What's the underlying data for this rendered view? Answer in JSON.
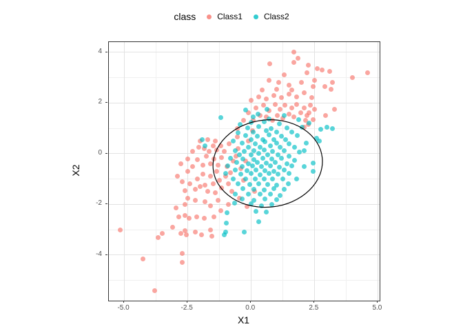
{
  "legend": {
    "title": "class",
    "items": [
      {
        "label": "Class1",
        "color": "#F8766D"
      },
      {
        "label": "Class2",
        "color": "#00BFC4"
      }
    ]
  },
  "chart_data": {
    "type": "scatter",
    "title": "",
    "xlabel": "X1",
    "ylabel": "X2",
    "xlim": [
      -5.6,
      5.07
    ],
    "ylim": [
      -5.8,
      4.4
    ],
    "grid": true,
    "legend_position": "top",
    "x_ticks": {
      "values": [
        -5,
        -2.5,
        0,
        2.5,
        5
      ],
      "labels": [
        "-5.0",
        "-2.5",
        "0.0",
        "2.5",
        "5.0"
      ]
    },
    "y_ticks": {
      "values": [
        -4,
        -2,
        0,
        2,
        4
      ],
      "labels": [
        "-4",
        "-2",
        "0",
        "2",
        "4"
      ]
    },
    "x_minor": [
      -3.75,
      -1.25,
      1.25,
      3.75
    ],
    "y_minor": [
      -5,
      -3,
      -1,
      1,
      3
    ],
    "point_alpha": 0.65,
    "ellipse": {
      "cx": 0.66,
      "cy": -0.39,
      "rx": 2.16,
      "ry": 1.72,
      "rotation_deg": 6,
      "stroke": "#000000",
      "stroke_width": 1.2
    },
    "series": [
      {
        "name": "Class1",
        "color": "#F8766D",
        "points": [
          [
            -5.15,
            -3.0
          ],
          [
            -4.25,
            -4.15
          ],
          [
            -3.8,
            -5.4
          ],
          [
            -3.65,
            -3.3
          ],
          [
            -3.5,
            -3.15
          ],
          [
            -3.1,
            -2.9
          ],
          [
            -2.7,
            -3.95
          ],
          [
            -2.7,
            -4.3
          ],
          [
            -2.75,
            -3.15
          ],
          [
            -2.6,
            -3.05
          ],
          [
            -2.55,
            -3.2
          ],
          [
            -2.2,
            -3.1
          ],
          [
            -1.95,
            -3.2
          ],
          [
            -1.55,
            -3.25
          ],
          [
            -2.85,
            -2.5
          ],
          [
            -2.6,
            -2.45
          ],
          [
            -2.45,
            -2.55
          ],
          [
            -2.15,
            -2.5
          ],
          [
            -1.85,
            -2.55
          ],
          [
            -1.6,
            -3.0
          ],
          [
            -2.95,
            -2.15
          ],
          [
            -2.6,
            -2.0
          ],
          [
            -1.45,
            -2.5
          ],
          [
            -1.3,
            -1.85
          ],
          [
            -1.6,
            -2.05
          ],
          [
            -1.2,
            -2.25
          ],
          [
            -2.2,
            -1.85
          ],
          [
            -2.5,
            -1.75
          ],
          [
            -1.8,
            -1.9
          ],
          [
            -0.9,
            -2.0
          ],
          [
            -2.9,
            -0.9
          ],
          [
            -2.7,
            -1.1
          ],
          [
            -2.5,
            -0.7
          ],
          [
            -2.4,
            -1.2
          ],
          [
            -2.6,
            -1.45
          ],
          [
            -2.2,
            -1.4
          ],
          [
            -2.1,
            -1.0
          ],
          [
            -2.0,
            -1.3
          ],
          [
            -1.9,
            -0.8
          ],
          [
            -1.8,
            -1.25
          ],
          [
            -1.7,
            -1.5
          ],
          [
            -1.6,
            -0.9
          ],
          [
            -1.5,
            -1.2
          ],
          [
            -1.4,
            -1.55
          ],
          [
            -1.35,
            -0.7
          ],
          [
            -1.25,
            -1.05
          ],
          [
            -1.15,
            -1.35
          ],
          [
            -1.0,
            -0.9
          ],
          [
            -0.9,
            -1.2
          ],
          [
            -0.75,
            -1.5
          ],
          [
            -2.75,
            -0.4
          ],
          [
            -2.5,
            -0.2
          ],
          [
            -2.3,
            -0.5
          ],
          [
            -2.1,
            -0.25
          ],
          [
            -1.9,
            -0.45
          ],
          [
            -1.75,
            -0.1
          ],
          [
            -1.6,
            -0.4
          ],
          [
            -1.45,
            -0.2
          ],
          [
            -1.3,
            -0.45
          ],
          [
            -1.15,
            -0.15
          ],
          [
            -2.3,
            0.1
          ],
          [
            -2.05,
            0.25
          ],
          [
            -1.85,
            0.2
          ],
          [
            -1.65,
            0.1
          ],
          [
            -1.5,
            0.3
          ],
          [
            -1.35,
            0.15
          ],
          [
            -2.0,
            0.5
          ],
          [
            -1.7,
            0.55
          ],
          [
            -1.4,
            0.5
          ],
          [
            -1.2,
            0.3
          ],
          [
            -1.05,
            0.1
          ],
          [
            -0.95,
            -0.5
          ],
          [
            -0.8,
            -0.75
          ],
          [
            -0.7,
            -0.3
          ],
          [
            -0.85,
            0.4
          ],
          [
            -0.45,
            -1.75
          ],
          [
            -0.6,
            -0.1
          ],
          [
            -0.5,
            0.2
          ],
          [
            -0.4,
            -0.6
          ],
          [
            -0.3,
            -1.05
          ],
          [
            -0.2,
            -0.3
          ],
          [
            -0.1,
            0.5
          ],
          [
            -0.55,
            0.65
          ],
          [
            0.05,
            0.9
          ],
          [
            -0.55,
            1.0
          ],
          [
            -0.3,
            1.3
          ],
          [
            -0.1,
            1.6
          ],
          [
            0.1,
            1.3
          ],
          [
            0.2,
            1.8
          ],
          [
            0.35,
            1.5
          ],
          [
            0.5,
            1.9
          ],
          [
            0.6,
            1.45
          ],
          [
            0.7,
            1.7
          ],
          [
            0.85,
            1.3
          ],
          [
            0.95,
            1.95
          ],
          [
            1.05,
            1.5
          ],
          [
            1.15,
            1.75
          ],
          [
            1.25,
            1.4
          ],
          [
            1.35,
            1.9
          ],
          [
            1.5,
            1.55
          ],
          [
            1.6,
            1.8
          ],
          [
            1.7,
            1.45
          ],
          [
            1.8,
            1.95
          ],
          [
            1.95,
            1.6
          ],
          [
            2.1,
            1.8
          ],
          [
            2.2,
            1.5
          ],
          [
            2.35,
            1.9
          ],
          [
            0.0,
            2.1
          ],
          [
            0.3,
            2.25
          ],
          [
            0.6,
            2.15
          ],
          [
            0.9,
            2.3
          ],
          [
            1.2,
            2.2
          ],
          [
            1.5,
            2.35
          ],
          [
            1.8,
            2.25
          ],
          [
            2.1,
            2.4
          ],
          [
            2.4,
            2.2
          ],
          [
            0.45,
            2.5
          ],
          [
            1.0,
            2.55
          ],
          [
            1.6,
            2.5
          ],
          [
            2.25,
            1.15
          ],
          [
            2.45,
            1.35
          ],
          [
            2.1,
            1.05
          ],
          [
            2.3,
            1.6
          ],
          [
            2.5,
            1.75
          ],
          [
            2.15,
            1.3
          ],
          [
            0.75,
            3.55
          ],
          [
            1.7,
            4.0
          ],
          [
            1.85,
            3.75
          ],
          [
            1.7,
            3.6
          ],
          [
            2.2,
            3.2
          ],
          [
            2.25,
            3.5
          ],
          [
            2.6,
            3.35
          ],
          [
            2.8,
            3.3
          ],
          [
            3.1,
            3.25
          ],
          [
            4.0,
            3.0
          ],
          [
            4.6,
            3.2
          ],
          [
            3.2,
            2.8
          ],
          [
            3.15,
            2.55
          ],
          [
            2.0,
            2.8
          ],
          [
            1.5,
            2.7
          ],
          [
            2.5,
            2.9
          ],
          [
            2.9,
            2.65
          ],
          [
            1.1,
            2.8
          ],
          [
            3.3,
            1.75
          ],
          [
            2.95,
            1.5
          ],
          [
            0.7,
            2.9
          ],
          [
            1.3,
            3.1
          ],
          [
            2.45,
            2.65
          ],
          [
            0.15,
            -1.5
          ],
          [
            -0.15,
            -2.1
          ]
        ]
      },
      {
        "name": "Class2",
        "color": "#00BFC4",
        "points": [
          [
            -0.22,
            1.72
          ],
          [
            0.62,
            1.76
          ],
          [
            0.28,
            1.55
          ],
          [
            1.32,
            1.5
          ],
          [
            0.08,
            1.44
          ],
          [
            -1.18,
            1.41
          ],
          [
            0.72,
            1.38
          ],
          [
            1.88,
            1.34
          ],
          [
            0.02,
            1.22
          ],
          [
            0.52,
            1.26
          ],
          [
            1.12,
            1.19
          ],
          [
            2.28,
            1.21
          ],
          [
            -0.42,
            1.14
          ],
          [
            -0.12,
            1.02
          ],
          [
            0.31,
            1.06
          ],
          [
            0.79,
            0.99
          ],
          [
            1.41,
            1.01
          ],
          [
            2.02,
            1.04
          ],
          [
            2.76,
            0.96
          ],
          [
            2.98,
            1.03
          ],
          [
            3.21,
            0.99
          ],
          [
            0.09,
            0.86
          ],
          [
            0.61,
            0.9
          ],
          [
            1.02,
            0.84
          ],
          [
            1.62,
            0.86
          ],
          [
            -0.52,
            0.81
          ],
          [
            -0.21,
            0.71
          ],
          [
            0.26,
            0.69
          ],
          [
            0.71,
            0.74
          ],
          [
            1.21,
            0.69
          ],
          [
            1.82,
            0.71
          ],
          [
            2.58,
            0.61
          ],
          [
            0.01,
            0.56
          ],
          [
            0.46,
            0.54
          ],
          [
            0.91,
            0.56
          ],
          [
            1.36,
            0.54
          ],
          [
            -0.71,
            0.51
          ],
          [
            -1.92,
            0.55
          ],
          [
            2.69,
            0.49
          ],
          [
            -0.36,
            0.41
          ],
          [
            0.16,
            0.39
          ],
          [
            0.56,
            0.46
          ],
          [
            1.01,
            0.41
          ],
          [
            1.51,
            0.39
          ],
          [
            2.19,
            0.41
          ],
          [
            -1.81,
            0.31
          ],
          [
            -0.11,
            0.26
          ],
          [
            0.36,
            0.24
          ],
          [
            0.76,
            0.31
          ],
          [
            1.16,
            0.26
          ],
          [
            1.71,
            0.24
          ],
          [
            2.09,
            0.11
          ],
          [
            -0.61,
            0.11
          ],
          [
            -0.26,
            0.09
          ],
          [
            0.11,
            0.12
          ],
          [
            0.51,
            0.14
          ],
          [
            0.86,
            0.09
          ],
          [
            1.31,
            0.11
          ],
          [
            1.91,
            0.06
          ],
          [
            -0.46,
            -0.04
          ],
          [
            0.01,
            -0.06
          ],
          [
            0.31,
            0.01
          ],
          [
            0.66,
            -0.04
          ],
          [
            1.06,
            -0.06
          ],
          [
            1.51,
            -0.09
          ],
          [
            -0.81,
            -0.19
          ],
          [
            -0.31,
            -0.21
          ],
          [
            0.11,
            -0.24
          ],
          [
            0.46,
            -0.19
          ],
          [
            0.81,
            -0.21
          ],
          [
            1.21,
            -0.19
          ],
          [
            1.71,
            -0.26
          ],
          [
            2.44,
            -0.36
          ],
          [
            -0.56,
            -0.34
          ],
          [
            -0.11,
            -0.41
          ],
          [
            0.26,
            -0.34
          ],
          [
            0.61,
            -0.36
          ],
          [
            0.96,
            -0.34
          ],
          [
            1.41,
            -0.39
          ],
          [
            -0.91,
            -0.49
          ],
          [
            -0.36,
            -0.51
          ],
          [
            0.06,
            -0.49
          ],
          [
            0.41,
            -0.51
          ],
          [
            0.76,
            -0.49
          ],
          [
            1.11,
            -0.54
          ],
          [
            1.61,
            -0.49
          ],
          [
            2.11,
            -0.51
          ],
          [
            -0.61,
            -0.64
          ],
          [
            -0.16,
            -0.66
          ],
          [
            0.21,
            -0.64
          ],
          [
            0.56,
            -0.66
          ],
          [
            0.91,
            -0.69
          ],
          [
            1.31,
            -0.64
          ],
          [
            2.44,
            -0.71
          ],
          [
            -1.01,
            -0.79
          ],
          [
            -0.41,
            -0.81
          ],
          [
            0.01,
            -0.79
          ],
          [
            0.36,
            -0.84
          ],
          [
            0.71,
            -0.79
          ],
          [
            1.06,
            -0.81
          ],
          [
            1.51,
            -0.79
          ],
          [
            -0.71,
            -0.99
          ],
          [
            -0.21,
            -1.01
          ],
          [
            0.16,
            -0.99
          ],
          [
            0.51,
            -1.01
          ],
          [
            0.86,
            -0.99
          ],
          [
            1.26,
            -1.01
          ],
          [
            1.81,
            -0.99
          ],
          [
            -0.51,
            -1.19
          ],
          [
            -0.06,
            -1.21
          ],
          [
            0.31,
            -1.19
          ],
          [
            0.66,
            -1.21
          ],
          [
            1.01,
            -1.24
          ],
          [
            1.46,
            -1.19
          ],
          [
            -0.31,
            -1.39
          ],
          [
            0.11,
            -1.41
          ],
          [
            0.51,
            -1.44
          ],
          [
            0.91,
            -1.39
          ],
          [
            1.31,
            -1.41
          ],
          [
            -0.61,
            -1.59
          ],
          [
            -0.11,
            -1.61
          ],
          [
            0.36,
            -1.59
          ],
          [
            0.76,
            -1.61
          ],
          [
            1.16,
            -1.64
          ],
          [
            -0.36,
            -1.79
          ],
          [
            0.11,
            -1.84
          ],
          [
            0.56,
            -1.79
          ],
          [
            1.01,
            -1.81
          ],
          [
            -0.64,
            -1.94
          ],
          [
            0.01,
            -1.99
          ],
          [
            0.41,
            -2.06
          ],
          [
            0.81,
            -2.01
          ],
          [
            -0.94,
            -2.34
          ],
          [
            0.21,
            -2.29
          ],
          [
            0.61,
            -2.31
          ],
          [
            -0.96,
            -2.74
          ],
          [
            0.31,
            -2.69
          ],
          [
            -1.01,
            -3.09
          ],
          [
            -0.26,
            -3.09
          ],
          [
            -1.06,
            -3.19
          ]
        ]
      }
    ]
  }
}
